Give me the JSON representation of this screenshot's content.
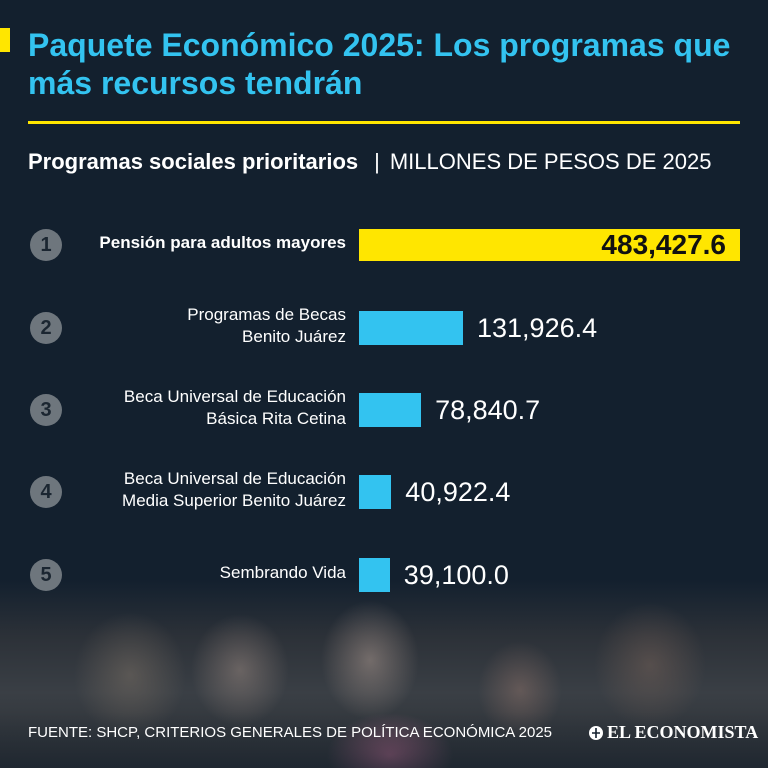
{
  "header": {
    "title": "Paquete Económico 2025: Los programas que más recursos tendrán",
    "subtitle_bold": "Programas sociales prioritarios",
    "subtitle_separator": "|",
    "subtitle_unit": "MILLONES DE PESOS DE 2025"
  },
  "colors": {
    "background": "#13202e",
    "title": "#33c3f0",
    "accent": "#ffe600",
    "bar_highlight": "#ffe600",
    "bar": "#33c3f0"
  },
  "chart_data": {
    "type": "bar",
    "orientation": "horizontal",
    "ranks": [
      "1",
      "2",
      "3",
      "4",
      "5"
    ],
    "categories": [
      "Pensión para adultos mayores",
      "Programas de Becas Benito Juárez",
      "Beca Universal de Educación Básica Rita Cetina",
      "Beca Universal de Educación Media Superior Benito Juárez",
      "Sembrando Vida"
    ],
    "category_lines": [
      [
        "Pensión para adultos mayores"
      ],
      [
        "Programas de Becas",
        "Benito Juárez"
      ],
      [
        "Beca Universal de Educación",
        "Básica Rita Cetina"
      ],
      [
        "Beca Universal de Educación",
        "Media Superior Benito Juárez"
      ],
      [
        "Sembrando Vida"
      ]
    ],
    "values": [
      483427.6,
      131926.4,
      78840.7,
      40922.4,
      39100.0
    ],
    "value_labels": [
      "483,427.6",
      "131,926.4",
      "78,840.7",
      "40,922.4",
      "39,100.0"
    ],
    "title": "Programas sociales prioritarios",
    "unit": "MILLONES DE PESOS DE 2025",
    "xlim": [
      0,
      483427.6
    ],
    "legend": "none",
    "grid": false
  },
  "footer": {
    "source": "FUENTE: SHCP, CRITERIOS GENERALES DE POLÍTICA ECONÓMICA 2025",
    "brand": "EL ECONOMISTA"
  }
}
